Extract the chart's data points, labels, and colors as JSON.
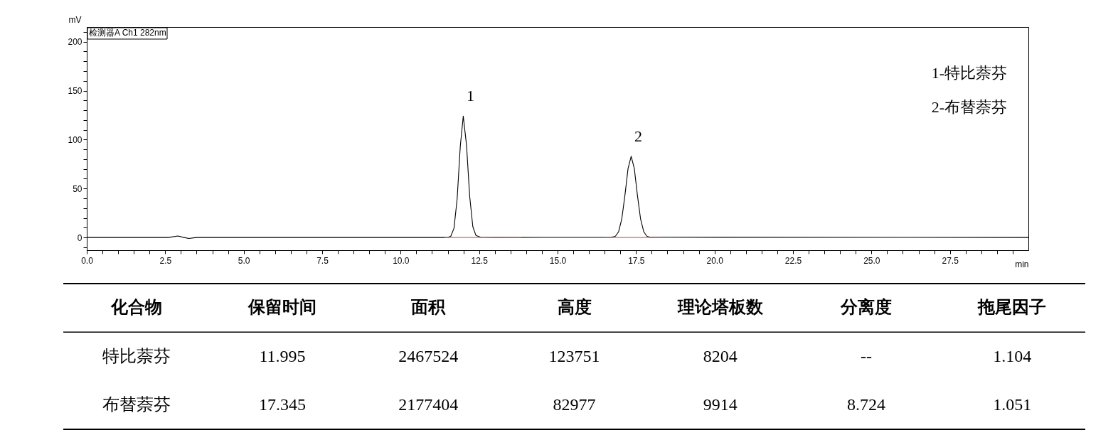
{
  "chart_data": [
    {
      "type": "line",
      "subtitle": "检测器A Ch1 282nm",
      "xlabel": "min",
      "ylabel": "mV",
      "xlim": [
        0,
        30
      ],
      "ylim": [
        -13,
        215
      ],
      "xticks": [
        {
          "value": 0,
          "label": "0.0"
        },
        {
          "value": 0.5,
          "label": null
        },
        {
          "value": 1,
          "label": null
        },
        {
          "value": 1.5,
          "label": null
        },
        {
          "value": 2,
          "label": null
        },
        {
          "value": 2.5,
          "label": "2.5"
        },
        {
          "value": 3,
          "label": null
        },
        {
          "value": 3.5,
          "label": null
        },
        {
          "value": 4,
          "label": null
        },
        {
          "value": 4.5,
          "label": null
        },
        {
          "value": 5,
          "label": "5.0"
        },
        {
          "value": 5.5,
          "label": null
        },
        {
          "value": 6,
          "label": null
        },
        {
          "value": 6.5,
          "label": null
        },
        {
          "value": 7,
          "label": null
        },
        {
          "value": 7.5,
          "label": "7.5"
        },
        {
          "value": 8,
          "label": null
        },
        {
          "value": 8.5,
          "label": null
        },
        {
          "value": 9,
          "label": null
        },
        {
          "value": 9.5,
          "label": null
        },
        {
          "value": 10,
          "label": "10.0"
        },
        {
          "value": 10.5,
          "label": null
        },
        {
          "value": 11,
          "label": null
        },
        {
          "value": 11.5,
          "label": null
        },
        {
          "value": 12,
          "label": null
        },
        {
          "value": 12.5,
          "label": "12.5"
        },
        {
          "value": 13,
          "label": null
        },
        {
          "value": 13.5,
          "label": null
        },
        {
          "value": 14,
          "label": null
        },
        {
          "value": 14.5,
          "label": null
        },
        {
          "value": 15,
          "label": "15.0"
        },
        {
          "value": 15.5,
          "label": null
        },
        {
          "value": 16,
          "label": null
        },
        {
          "value": 16.5,
          "label": null
        },
        {
          "value": 17,
          "label": null
        },
        {
          "value": 17.5,
          "label": "17.5"
        },
        {
          "value": 18,
          "label": null
        },
        {
          "value": 18.5,
          "label": null
        },
        {
          "value": 19,
          "label": null
        },
        {
          "value": 19.5,
          "label": null
        },
        {
          "value": 20,
          "label": "20.0"
        },
        {
          "value": 20.5,
          "label": null
        },
        {
          "value": 21,
          "label": null
        },
        {
          "value": 21.5,
          "label": null
        },
        {
          "value": 22,
          "label": null
        },
        {
          "value": 22.5,
          "label": "22.5"
        },
        {
          "value": 23,
          "label": null
        },
        {
          "value": 23.5,
          "label": null
        },
        {
          "value": 24,
          "label": null
        },
        {
          "value": 24.5,
          "label": null
        },
        {
          "value": 25,
          "label": "25.0"
        },
        {
          "value": 25.5,
          "label": null
        },
        {
          "value": 26,
          "label": null
        },
        {
          "value": 26.5,
          "label": null
        },
        {
          "value": 27,
          "label": null
        },
        {
          "value": 27.5,
          "label": "27.5"
        },
        {
          "value": 28,
          "label": null
        },
        {
          "value": 28.5,
          "label": null
        },
        {
          "value": 29,
          "label": null
        },
        {
          "value": 29.5,
          "label": null
        }
      ],
      "yticks": [
        {
          "value": -10,
          "label": null
        },
        0,
        {
          "value": 10,
          "label": null
        },
        {
          "value": 20,
          "label": null
        },
        {
          "value": 30,
          "label": null
        },
        {
          "value": 40,
          "label": null
        },
        50,
        {
          "value": 60,
          "label": null
        },
        {
          "value": 70,
          "label": null
        },
        {
          "value": 80,
          "label": null
        },
        {
          "value": 90,
          "label": null
        },
        100,
        {
          "value": 110,
          "label": null
        },
        {
          "value": 120,
          "label": null
        },
        {
          "value": 130,
          "label": null
        },
        {
          "value": 140,
          "label": null
        },
        150,
        {
          "value": 160,
          "label": null
        },
        {
          "value": 170,
          "label": null
        },
        {
          "value": 180,
          "label": null
        },
        {
          "value": 190,
          "label": null
        },
        200,
        {
          "value": 210,
          "label": null
        }
      ],
      "grid": false,
      "marker": "none",
      "line_style": "solid",
      "series": [
        {
          "color": "#000000",
          "x": [
            0,
            2.6,
            2.9,
            3.1,
            3.25,
            3.5,
            11.4,
            11.5,
            11.6,
            11.7,
            11.8,
            11.9,
            11.995,
            12.1,
            12.2,
            12.3,
            12.4,
            12.55,
            13,
            16.7,
            16.845,
            16.945,
            17.045,
            17.145,
            17.245,
            17.345,
            17.445,
            17.545,
            17.645,
            17.745,
            17.845,
            17.945,
            30
          ],
          "values": [
            0,
            0,
            1.5,
            0,
            -1,
            0,
            0,
            0.1,
            1.3,
            9.4,
            39.3,
            93,
            124,
            94,
            42,
            11,
            2,
            0.3,
            0,
            0.1,
            1.3,
            5.9,
            18.8,
            42.8,
            70.4,
            83,
            70.4,
            42.8,
            18.8,
            5.9,
            1.3,
            0.2,
            0
          ]
        },
        {
          "color": "#f06050",
          "x": [
            11.4,
            13.85
          ],
          "values": [
            0,
            0
          ]
        },
        {
          "color": "#f06050",
          "x": [
            16.5,
            18.25
          ],
          "values": [
            0,
            0
          ]
        }
      ],
      "annotations": [
        {
          "text": "1",
          "x": 11.995,
          "y": 124
        },
        {
          "text": "2",
          "x": 17.345,
          "y": 83
        },
        "1-特比萘芬",
        "2-布替萘芬"
      ]
    },
    {
      "type": "other",
      "categories": [
        "化合物",
        "保留时间",
        "面积",
        "高度",
        "理论塔板数",
        "分离度",
        "拖尾因子"
      ],
      "annotations": [
        "特比萘芬",
        "11.995",
        "2467524",
        "123751",
        "8204",
        "--",
        "1.104",
        "布替萘芬",
        "17.345",
        "2177404",
        "82977",
        "9914",
        "8.724",
        "1.051"
      ]
    }
  ]
}
